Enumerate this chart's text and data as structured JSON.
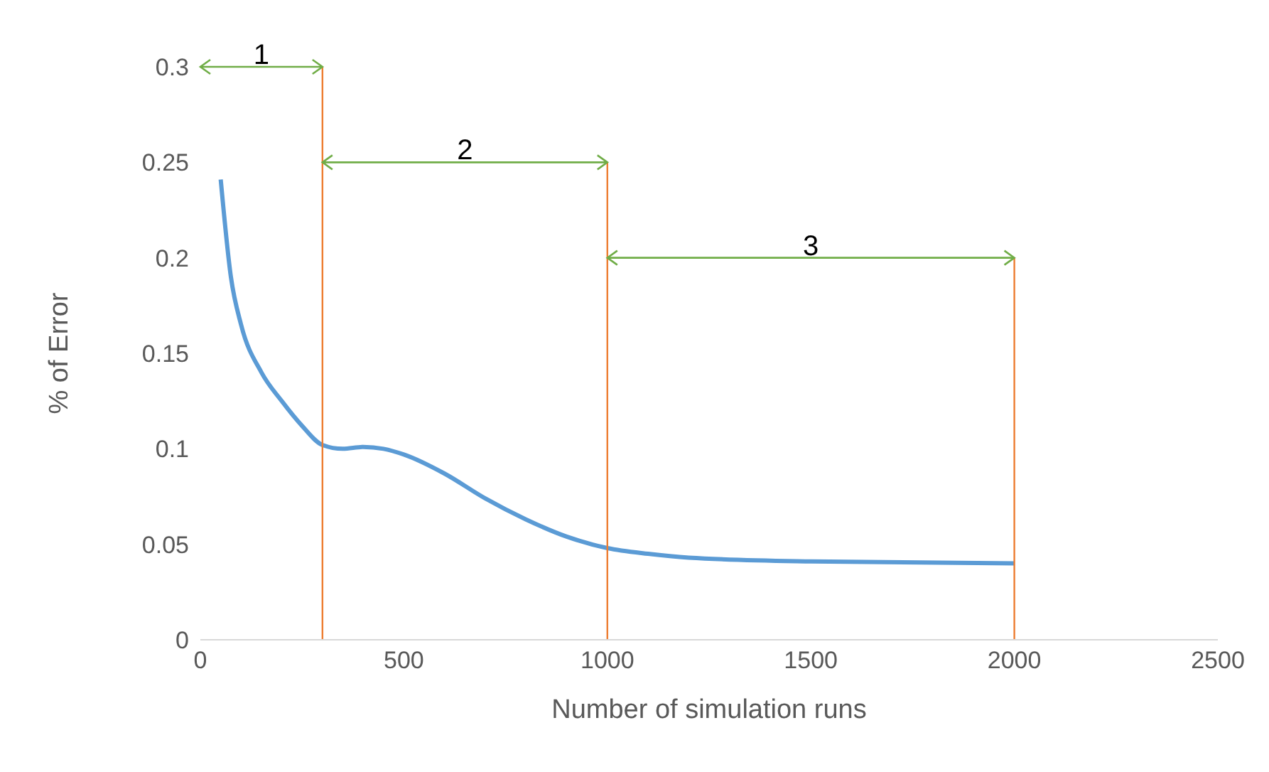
{
  "chart_data": {
    "type": "line",
    "xlabel": "Number of simulation runs",
    "ylabel": "% of Error",
    "xlim": [
      0,
      2500
    ],
    "xticks": [
      0,
      500,
      1000,
      1500,
      2000,
      2500
    ],
    "ylim": [
      0,
      0.3
    ],
    "yticks": [
      0,
      0.05,
      0.1,
      0.15,
      0.2,
      0.25,
      0.3
    ],
    "grid": false,
    "legend": false,
    "marker": "none",
    "line_style": "solid",
    "series": [
      {
        "color": "#5b9bd5",
        "x": [
          50,
          75,
          100,
          150,
          200,
          250,
          300,
          350,
          400,
          450,
          500,
          600,
          700,
          800,
          900,
          1000,
          1100,
          1200,
          1500,
          2000
        ],
        "values": [
          0.241,
          0.19,
          0.165,
          0.14,
          0.125,
          0.112,
          0.102,
          0.1,
          0.101,
          0.1,
          0.097,
          0.087,
          0.074,
          0.063,
          0.054,
          0.048,
          0.045,
          0.043,
          0.041,
          0.04
        ]
      }
    ],
    "ref_lines": [
      {
        "axis": "x",
        "value": 300,
        "label": null,
        "color": "#ed7d31"
      },
      {
        "axis": "x",
        "value": 1000,
        "label": null,
        "color": "#ed7d31"
      },
      {
        "axis": "x",
        "value": 2000,
        "label": null,
        "color": "#ed7d31"
      }
    ],
    "annotations": [
      "1",
      "2",
      "3"
    ]
  }
}
